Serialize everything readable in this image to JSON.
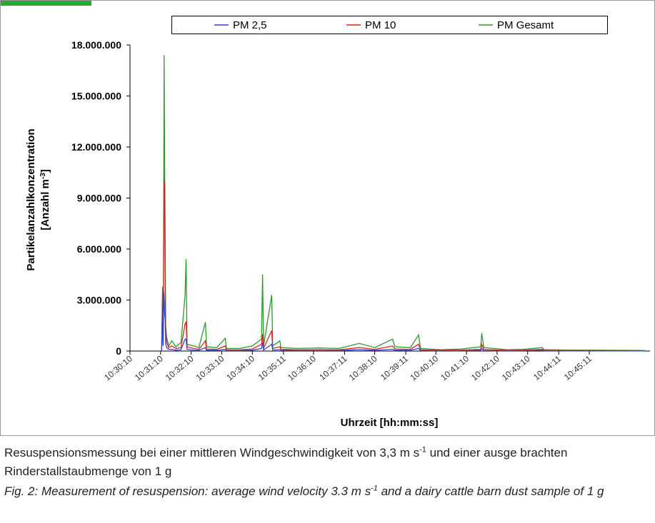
{
  "chart_data": {
    "type": "line",
    "legend_position": "top",
    "x": [
      "10:31:12",
      "10:31:14",
      "10:31:15",
      "10:31:16",
      "10:31:17",
      "10:31:18",
      "10:31:19",
      "10:31:20",
      "10:31:22",
      "10:31:26",
      "10:31:32",
      "10:31:40",
      "10:31:50",
      "10:31:58",
      "10:32:00",
      "10:32:02",
      "10:32:15",
      "10:32:25",
      "10:32:38",
      "10:32:40",
      "10:33:00",
      "10:33:17",
      "10:33:19",
      "10:33:45",
      "10:34:10",
      "10:34:28",
      "10:34:30",
      "10:34:32",
      "10:34:48",
      "10:34:50",
      "10:35:04",
      "10:35:06",
      "10:35:40",
      "10:36:20",
      "10:37:00",
      "10:37:40",
      "10:38:10",
      "10:38:45",
      "10:38:50",
      "10:39:20",
      "10:39:36",
      "10:39:40",
      "10:40:20",
      "10:41:00",
      "10:41:38",
      "10:41:40",
      "10:41:44",
      "10:42:30",
      "10:43:00",
      "10:43:39",
      "10:43:42",
      "10:44:30",
      "10:45:30",
      "10:46:30",
      "10:47:00"
    ],
    "series": [
      {
        "name": "PM Gesamt",
        "color": "#2a9a2a",
        "values": [
          0,
          3800000,
          500000,
          6800000,
          17400000,
          10600000,
          7400000,
          1500000,
          800000,
          300000,
          600000,
          250000,
          500000,
          3300000,
          5400000,
          400000,
          300000,
          200000,
          1700000,
          250000,
          200000,
          750000,
          150000,
          150000,
          300000,
          700000,
          4500000,
          300000,
          3300000,
          300000,
          600000,
          200000,
          150000,
          180000,
          150000,
          450000,
          200000,
          700000,
          250000,
          200000,
          950000,
          150000,
          80000,
          120000,
          250000,
          1050000,
          200000,
          80000,
          100000,
          200000,
          80000,
          60000,
          50000,
          40000,
          30000
        ]
      },
      {
        "name": "PM 10",
        "color": "#dd2222",
        "values": [
          0,
          3700000,
          400000,
          6000000,
          10000000,
          9800000,
          3500000,
          900000,
          500000,
          200000,
          300000,
          150000,
          200000,
          1600000,
          1700000,
          250000,
          150000,
          100000,
          600000,
          120000,
          100000,
          300000,
          80000,
          70000,
          120000,
          400000,
          1000000,
          150000,
          1200000,
          150000,
          250000,
          100000,
          70000,
          80000,
          70000,
          200000,
          100000,
          300000,
          120000,
          100000,
          400000,
          70000,
          40000,
          60000,
          100000,
          400000,
          90000,
          40000,
          50000,
          100000,
          40000,
          30000,
          25000,
          20000,
          15000
        ]
      },
      {
        "name": "PM 2,5",
        "color": "#3344cc",
        "values": [
          0,
          2800000,
          300000,
          3500000,
          3000000,
          2200000,
          1800000,
          400000,
          200000,
          100000,
          100000,
          50000,
          80000,
          700000,
          700000,
          100000,
          60000,
          40000,
          200000,
          50000,
          40000,
          100000,
          30000,
          30000,
          50000,
          150000,
          500000,
          60000,
          400000,
          60000,
          80000,
          40000,
          30000,
          30000,
          30000,
          80000,
          40000,
          100000,
          50000,
          40000,
          150000,
          30000,
          15000,
          20000,
          40000,
          150000,
          30000,
          15000,
          20000,
          40000,
          15000,
          10000,
          10000,
          8000,
          5000
        ]
      }
    ],
    "legend_order": [
      2,
      1,
      0
    ],
    "xlim": [
      "10:30:10",
      "10:47:10"
    ],
    "xticks": [
      "10:30:10",
      "10:31:10",
      "10:32:10",
      "10:33:10",
      "10:34:10",
      "10:35:11",
      "10:36:10",
      "10:37:11",
      "10:38:10",
      "10:39:11",
      "10:40:10",
      "10:41:10",
      "10:42:10",
      "10:43:10",
      "10:44:11",
      "10:45:11"
    ],
    "ylim": [
      0,
      18000000
    ],
    "yticks": [
      0,
      {
        "value": 3000000,
        "label": "3.000.000"
      },
      {
        "value": 6000000,
        "label": "6.000.000"
      },
      {
        "value": 9000000,
        "label": "9.000.000"
      },
      {
        "value": 12000000,
        "label": "12.000.000"
      },
      {
        "value": 15000000,
        "label": "15.000.000"
      },
      {
        "value": 18000000,
        "label": "18.000.000"
      }
    ],
    "xlabel": "Uhrzeit [hh:mm:ss]",
    "ylabel": [
      "Partikelanzahlkonzentration",
      "[Anzahl m",
      "-3",
      "]"
    ]
  },
  "caption": {
    "de": [
      "Resuspensionsmessung bei einer mittleren Windgeschwindigkeit von 3,3 m s",
      "-1",
      " und einer ausge brachten Rinderstallstaubmenge von 1 g"
    ],
    "en": [
      "Fig. 2: Measurement of resuspension: average wind velocity 3.3 m s",
      "-1",
      " and a dairy cattle barn dust sample of 1 g"
    ]
  }
}
